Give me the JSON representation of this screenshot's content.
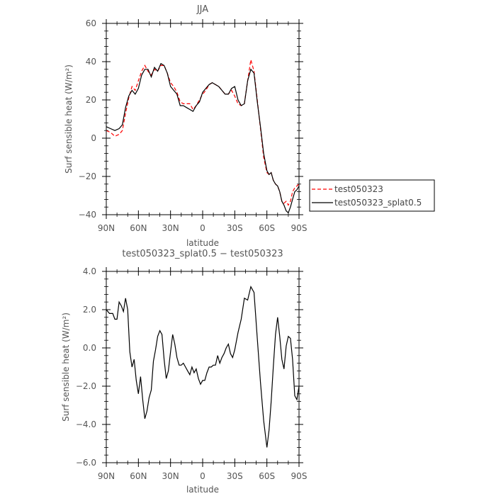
{
  "chart_data": [
    {
      "type": "line",
      "title": "JJA",
      "xlabel": "latitude",
      "ylabel": "Surf sensible heat (W/m²)",
      "ylim": [
        -40,
        60
      ],
      "xlim": [
        90,
        -90
      ],
      "yticks": [
        -40,
        -20,
        0,
        20,
        40,
        60
      ],
      "ytick_labels": [
        "−40",
        "−20",
        "0",
        "20",
        "40",
        "60"
      ],
      "xticks": [
        90,
        60,
        30,
        0,
        -30,
        -60,
        -90
      ],
      "xtick_labels": [
        "90N",
        "60N",
        "30N",
        "0",
        "30S",
        "60S",
        "90S"
      ],
      "legend_position": "right",
      "series": [
        {
          "name": "test050323",
          "color": "#ff0000",
          "dash": "dashed",
          "x": [
            90,
            86,
            82,
            78,
            75,
            72,
            69,
            66,
            63,
            60,
            57,
            54,
            51,
            48,
            45,
            42,
            39,
            36,
            33,
            30,
            27,
            24,
            21,
            18,
            15,
            12,
            9,
            6,
            3,
            0,
            -3,
            -6,
            -9,
            -12,
            -15,
            -18,
            -21,
            -24,
            -27,
            -30,
            -33,
            -36,
            -39,
            -42,
            -45,
            -48,
            -51,
            -54,
            -57,
            -60,
            -62,
            -64,
            -66,
            -68,
            -70,
            -72,
            -74,
            -76,
            -78,
            -80,
            -82,
            -84,
            -86,
            -88,
            -90
          ],
          "y": [
            4,
            3,
            1,
            2,
            4,
            13,
            21,
            27,
            25,
            30,
            35,
            38,
            35,
            33,
            36,
            35,
            38,
            38,
            34,
            29,
            27,
            24,
            19,
            18,
            18,
            18,
            15,
            17,
            20,
            23,
            25,
            28,
            29,
            28,
            27,
            25,
            23,
            23,
            25,
            22,
            18,
            17,
            18,
            30,
            41,
            35,
            20,
            5,
            -10,
            -18,
            -19,
            -18,
            -22,
            -24,
            -25,
            -28,
            -33,
            -34,
            -33,
            -35,
            -33,
            -28,
            -26,
            -25,
            -24
          ]
        },
        {
          "name": "test050323_splat0.5",
          "color": "#000000",
          "dash": "solid",
          "x": [
            90,
            86,
            82,
            78,
            75,
            72,
            69,
            66,
            63,
            60,
            57,
            54,
            51,
            48,
            45,
            42,
            39,
            36,
            33,
            30,
            27,
            24,
            21,
            18,
            15,
            12,
            9,
            6,
            3,
            0,
            -3,
            -6,
            -9,
            -12,
            -15,
            -18,
            -21,
            -24,
            -27,
            -30,
            -33,
            -36,
            -39,
            -42,
            -45,
            -48,
            -51,
            -54,
            -57,
            -60,
            -62,
            -64,
            -66,
            -68,
            -70,
            -72,
            -74,
            -76,
            -78,
            -80,
            -82,
            -84,
            -86,
            -88,
            -90
          ],
          "y": [
            6,
            5,
            4,
            5,
            7,
            16,
            22,
            25,
            23,
            26,
            33,
            36,
            36,
            32,
            37,
            35,
            39,
            38,
            34,
            27,
            25,
            23,
            17,
            17,
            16,
            15,
            14,
            17,
            19,
            24,
            26,
            28,
            29,
            28,
            27,
            25,
            23,
            23,
            26,
            27,
            20,
            17,
            18,
            30,
            36,
            34,
            19,
            6,
            -8,
            -17,
            -19,
            -18,
            -22,
            -24,
            -25,
            -28,
            -33,
            -35,
            -38,
            -39,
            -36,
            -32,
            -28,
            -27,
            -25
          ]
        }
      ]
    },
    {
      "type": "line",
      "title": "test050323_splat0.5 − test050323",
      "xlabel": "latitude",
      "ylabel": "Surf sensible heat (W/m²)",
      "ylim": [
        -6,
        4
      ],
      "xlim": [
        90,
        -90
      ],
      "yticks": [
        -6,
        -4,
        -2,
        0,
        2,
        4
      ],
      "ytick_labels": [
        "−6.0",
        "−4.0",
        "−2.0",
        "0.0",
        "2.0",
        "4.0"
      ],
      "xticks": [
        90,
        60,
        30,
        0,
        -30,
        -60,
        -90
      ],
      "xtick_labels": [
        "90N",
        "60N",
        "30N",
        "0",
        "30S",
        "60S",
        "90S"
      ],
      "series": [
        {
          "name": "",
          "color": "#000000",
          "dash": "solid",
          "x": [
            90,
            87,
            84,
            82,
            80,
            78,
            76,
            74,
            72,
            70,
            68,
            66,
            64,
            62,
            60,
            58,
            56,
            54,
            52,
            50,
            48,
            46,
            44,
            42,
            40,
            38,
            36,
            34,
            32,
            30,
            28,
            26,
            24,
            22,
            20,
            18,
            16,
            14,
            12,
            10,
            8,
            6,
            4,
            2,
            0,
            -2,
            -4,
            -6,
            -8,
            -10,
            -12,
            -14,
            -16,
            -18,
            -20,
            -22,
            -24,
            -26,
            -28,
            -30,
            -33,
            -36,
            -39,
            -42,
            -45,
            -48,
            -51,
            -54,
            -57,
            -60,
            -62,
            -64,
            -66,
            -68,
            -70,
            -72,
            -74,
            -76,
            -78,
            -80,
            -82,
            -84,
            -86,
            -88,
            -90
          ],
          "y": [
            2.0,
            1.8,
            1.8,
            1.5,
            1.5,
            2.4,
            2.2,
            1.9,
            2.6,
            2.0,
            -0.2,
            -1.0,
            -0.6,
            -1.7,
            -2.4,
            -1.5,
            -2.7,
            -3.7,
            -3.3,
            -2.6,
            -2.2,
            -0.7,
            -0.1,
            0.6,
            0.9,
            0.7,
            -0.6,
            -1.6,
            -1.2,
            -0.2,
            0.7,
            0.2,
            -0.5,
            -0.9,
            -0.9,
            -0.8,
            -1.0,
            -1.2,
            -1.4,
            -1.0,
            -1.3,
            -1.1,
            -1.6,
            -1.9,
            -1.7,
            -1.7,
            -1.3,
            -1.0,
            -1.0,
            -0.9,
            -0.9,
            -0.4,
            -0.8,
            -0.5,
            -0.3,
            0.0,
            0.2,
            -0.3,
            -0.5,
            -0.1,
            0.8,
            1.5,
            2.6,
            2.5,
            3.2,
            2.9,
            0.5,
            -1.8,
            -3.8,
            -5.2,
            -4.3,
            -2.8,
            -1.0,
            0.7,
            1.6,
            0.6,
            -0.6,
            -1.1,
            0.1,
            0.6,
            0.5,
            -0.6,
            -2.5,
            -2.7,
            -2.0
          ]
        }
      ]
    }
  ]
}
